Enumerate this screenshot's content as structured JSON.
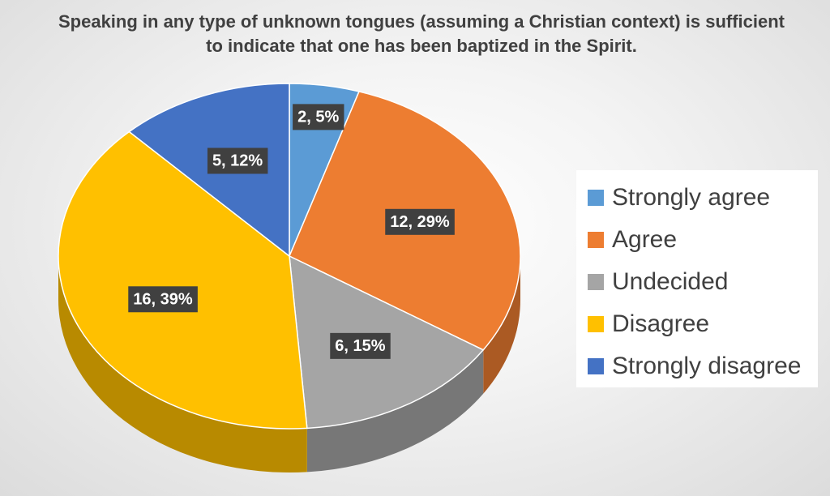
{
  "chart_data": {
    "type": "pie",
    "title": "Speaking in any type of unknown tongues (assuming a Christian context) is sufficient to indicate that one has been baptized in the Spirit.",
    "categories": [
      "Strongly agree",
      "Agree",
      "Undecided",
      "Disagree",
      "Strongly disagree"
    ],
    "values": [
      2,
      12,
      6,
      16,
      5
    ],
    "percent_labels": [
      "5%",
      "29%",
      "15%",
      "39%",
      "12%"
    ],
    "data_labels": [
      "2, 5%",
      "12, 29%",
      "6, 15%",
      "16, 39%",
      "5, 12%"
    ],
    "colors": [
      "#5b9bd5",
      "#ed7d31",
      "#a5a5a5",
      "#ffc000",
      "#4472c4"
    ],
    "legend_position": "right",
    "style": "3d"
  }
}
